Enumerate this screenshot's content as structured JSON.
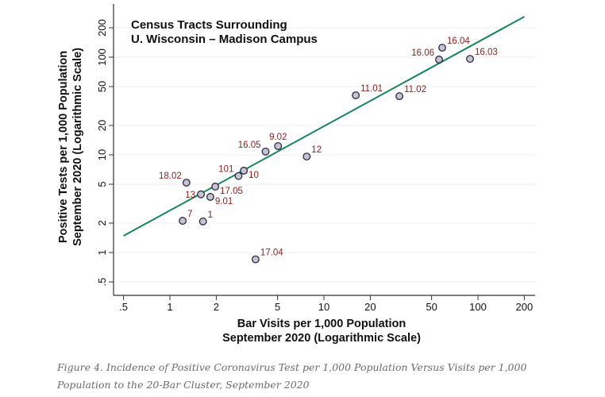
{
  "chart_data": {
    "type": "scatter",
    "title": [
      "Census Tracts Surrounding",
      "U. Wisconsin – Madison Campus"
    ],
    "xlabel": [
      "Bar Visits per 1,000 Population",
      "September 2020 (Logarithmic Scale)"
    ],
    "ylabel": [
      "Positive Tests per 1,000 Population",
      "September 2020 (Logarithmic Scale)"
    ],
    "xscale": "log",
    "yscale": "log",
    "xlim": [
      0.45,
      230
    ],
    "ylim": [
      0.45,
      260
    ],
    "xticks": [
      0.5,
      1,
      2,
      5,
      10,
      20,
      50,
      100,
      200
    ],
    "xtick_labels": [
      ".5",
      "1",
      "2",
      "5",
      "10",
      "20",
      "50",
      "100",
      "200"
    ],
    "yticks": [
      0.5,
      1,
      2,
      5,
      10,
      20,
      50,
      100,
      200
    ],
    "ytick_labels": [
      ".5",
      "1",
      "2",
      "5",
      "10",
      "20",
      "50",
      "100",
      "200"
    ],
    "grid": "horizontal",
    "points": [
      {
        "label": "16.04",
        "x": 58.6,
        "y": 125,
        "label_pos": "upper-right"
      },
      {
        "label": "16.06",
        "x": 55.9,
        "y": 94.6,
        "label_pos": "upper-left"
      },
      {
        "label": "16.03",
        "x": 88.8,
        "y": 96,
        "label_pos": "upper-right"
      },
      {
        "label": "11.01",
        "x": 16.1,
        "y": 40.7,
        "label_pos": "upper-right"
      },
      {
        "label": "11.02",
        "x": 30.9,
        "y": 39.9,
        "label_pos": "upper-right"
      },
      {
        "label": "16.05",
        "x": 4.18,
        "y": 10.8,
        "label_pos": "upper-left"
      },
      {
        "label": "9.02",
        "x": 5.04,
        "y": 12.3,
        "label_pos": "above"
      },
      {
        "label": "12",
        "x": 7.73,
        "y": 9.6,
        "label_pos": "upper-right"
      },
      {
        "label": "101",
        "x": 2.79,
        "y": 6.07,
        "label_pos": "upper-left"
      },
      {
        "label": "10",
        "x": 3.02,
        "y": 6.88,
        "label_pos": "lower-right"
      },
      {
        "label": "18.02",
        "x": 1.28,
        "y": 5.19,
        "label_pos": "upper-left"
      },
      {
        "label": "17.05",
        "x": 1.97,
        "y": 4.73,
        "label_pos": "lower-right"
      },
      {
        "label": "13",
        "x": 1.59,
        "y": 3.94,
        "label_pos": "left"
      },
      {
        "label": "9.01",
        "x": 1.83,
        "y": 3.71,
        "label_pos": "lower-right"
      },
      {
        "label": "7",
        "x": 1.21,
        "y": 2.11,
        "label_pos": "upper-right"
      },
      {
        "label": "1",
        "x": 1.64,
        "y": 2.08,
        "label_pos": "upper-right"
      },
      {
        "label": "17.04",
        "x": 3.6,
        "y": 0.85,
        "label_pos": "upper-right"
      }
    ],
    "fit_line": {
      "x": [
        0.5,
        200
      ],
      "y": [
        1.48,
        260
      ]
    },
    "colors": {
      "marker_fill": "#c8c2d6",
      "marker_stroke": "#2a2a3a",
      "label": "#8b1c1c",
      "fit_line": "#17875a",
      "grid": "#ececec"
    }
  },
  "caption": [
    "Figure 4. Incidence of Positive Coronavirus Test per 1,000 Population Versus Visits per 1,000",
    "Population to the 20-Bar Cluster, September 2020"
  ]
}
